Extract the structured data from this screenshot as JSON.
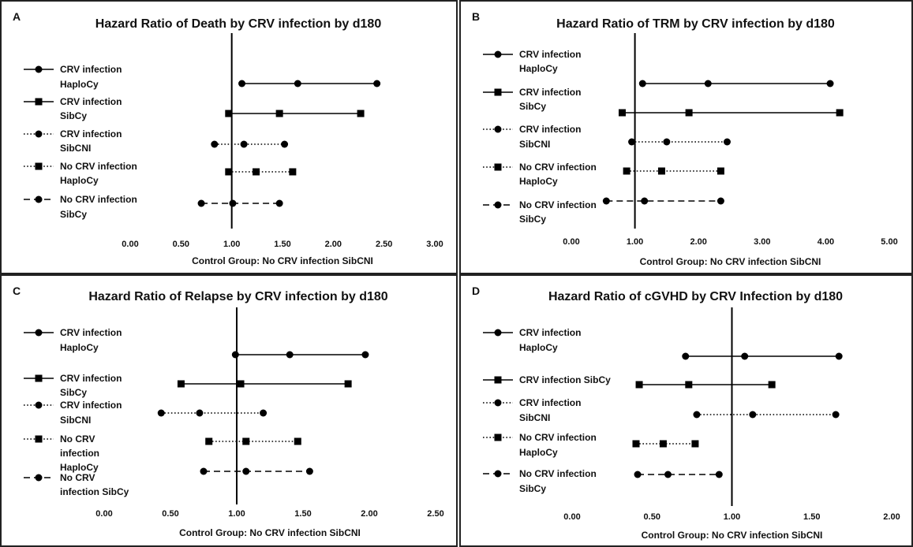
{
  "chart_data": [
    {
      "type": "forest",
      "panel_letter": "A",
      "title": "Hazard Ratio of Death by CRV infection by d180",
      "xlabel": "Control Group: No CRV infection SibCNI",
      "xlim": [
        0,
        3
      ],
      "xticks": [
        "0.00",
        "0.50",
        "1.00",
        "1.50",
        "2.00",
        "2.50",
        "3.00"
      ],
      "reference_line": 1,
      "series": [
        {
          "label_lines": [
            "CRV infection",
            "HaploCy"
          ],
          "marker": "circle",
          "line": "solid",
          "estimate": 1.65,
          "lower": 1.1,
          "upper": 2.43
        },
        {
          "label_lines": [
            "CRV infection",
            "SibCy"
          ],
          "marker": "square",
          "line": "solid",
          "estimate": 1.47,
          "lower": 0.97,
          "upper": 2.27
        },
        {
          "label_lines": [
            "CRV infection",
            "SibCNI"
          ],
          "marker": "circle",
          "line": "dotted",
          "estimate": 1.12,
          "lower": 0.83,
          "upper": 1.52
        },
        {
          "label_lines": [
            "No CRV infection",
            "HaploCy"
          ],
          "marker": "square",
          "line": "dotted",
          "estimate": 1.24,
          "lower": 0.97,
          "upper": 1.6
        },
        {
          "label_lines": [
            "No CRV infection",
            "SibCy"
          ],
          "marker": "circle",
          "line": "dashed",
          "estimate": 1.01,
          "lower": 0.7,
          "upper": 1.47
        }
      ]
    },
    {
      "type": "forest",
      "panel_letter": "B",
      "title": "Hazard Ratio of TRM by CRV infection by d180",
      "xlabel": "Control Group: No CRV infection SibCNI",
      "xlim": [
        0,
        5
      ],
      "xticks": [
        "0.00",
        "1.00",
        "2.00",
        "3.00",
        "4.00",
        "5.00"
      ],
      "reference_line": 1,
      "series": [
        {
          "label_lines": [
            "CRV infection",
            "HaploCy"
          ],
          "marker": "circle",
          "line": "solid",
          "estimate": 2.15,
          "lower": 1.12,
          "upper": 4.07
        },
        {
          "label_lines": [
            "CRV infection",
            "SibCy"
          ],
          "marker": "square",
          "line": "solid",
          "estimate": 1.85,
          "lower": 0.8,
          "upper": 4.22
        },
        {
          "label_lines": [
            "CRV infection",
            "SibCNI"
          ],
          "marker": "circle",
          "line": "dotted",
          "estimate": 1.5,
          "lower": 0.95,
          "upper": 2.45
        },
        {
          "label_lines": [
            "No CRV infection",
            "HaploCy"
          ],
          "marker": "square",
          "line": "dotted",
          "estimate": 1.42,
          "lower": 0.87,
          "upper": 2.35
        },
        {
          "label_lines": [
            "No CRV infection",
            "SibCy"
          ],
          "marker": "circle",
          "line": "dashed",
          "estimate": 1.15,
          "lower": 0.55,
          "upper": 2.35
        }
      ]
    },
    {
      "type": "forest",
      "panel_letter": "C",
      "title": "Hazard Ratio of Relapse by CRV infection by d180",
      "xlabel": "Control Group: No CRV infection SibCNI",
      "xlim": [
        0,
        2.5
      ],
      "xticks": [
        "0.00",
        "0.50",
        "1.00",
        "1.50",
        "2.00",
        "2.50"
      ],
      "reference_line": 1,
      "series": [
        {
          "label_lines": [
            "CRV infection",
            "HaploCy"
          ],
          "marker": "circle",
          "line": "solid",
          "estimate": 1.4,
          "lower": 0.99,
          "upper": 1.97
        },
        {
          "label_lines": [
            "CRV infection",
            "SibCy"
          ],
          "marker": "square",
          "line": "solid",
          "estimate": 1.03,
          "lower": 0.58,
          "upper": 1.84
        },
        {
          "label_lines": [
            "CRV infection",
            "SibCNI"
          ],
          "marker": "circle",
          "line": "dotted",
          "estimate": 0.72,
          "lower": 0.43,
          "upper": 1.2
        },
        {
          "label_lines": [
            "No CRV",
            "infection",
            "HaploCy"
          ],
          "marker": "square",
          "line": "dotted",
          "estimate": 1.07,
          "lower": 0.79,
          "upper": 1.46
        },
        {
          "label_lines": [
            "No CRV",
            "infection SibCy"
          ],
          "marker": "circle",
          "line": "dashed",
          "estimate": 1.07,
          "lower": 0.75,
          "upper": 1.55
        }
      ]
    },
    {
      "type": "forest",
      "panel_letter": "D",
      "title": "Hazard Ratio of cGVHD by CRV Infection by d180",
      "xlabel": "Control Group: No CRV infection SibCNI",
      "xlim": [
        0,
        2
      ],
      "xticks": [
        "0.00",
        "0.50",
        "1.00",
        "1.50",
        "2.00"
      ],
      "reference_line": 1,
      "series": [
        {
          "label_lines": [
            "CRV infection",
            "HaploCy"
          ],
          "marker": "circle",
          "line": "solid",
          "estimate": 1.08,
          "lower": 0.71,
          "upper": 1.67
        },
        {
          "label_lines": [
            "CRV infection SibCy"
          ],
          "marker": "square",
          "line": "solid",
          "estimate": 0.73,
          "lower": 0.42,
          "upper": 1.25
        },
        {
          "label_lines": [
            "CRV infection",
            "SibCNI"
          ],
          "marker": "circle",
          "line": "dotted",
          "estimate": 1.13,
          "lower": 0.78,
          "upper": 1.65
        },
        {
          "label_lines": [
            "No CRV infection",
            "HaploCy"
          ],
          "marker": "square",
          "line": "dotted",
          "estimate": 0.57,
          "lower": 0.4,
          "upper": 0.77
        },
        {
          "label_lines": [
            "No CRV infection",
            "SibCy"
          ],
          "marker": "circle",
          "line": "dashed",
          "estimate": 0.6,
          "lower": 0.41,
          "upper": 0.92
        }
      ]
    }
  ]
}
